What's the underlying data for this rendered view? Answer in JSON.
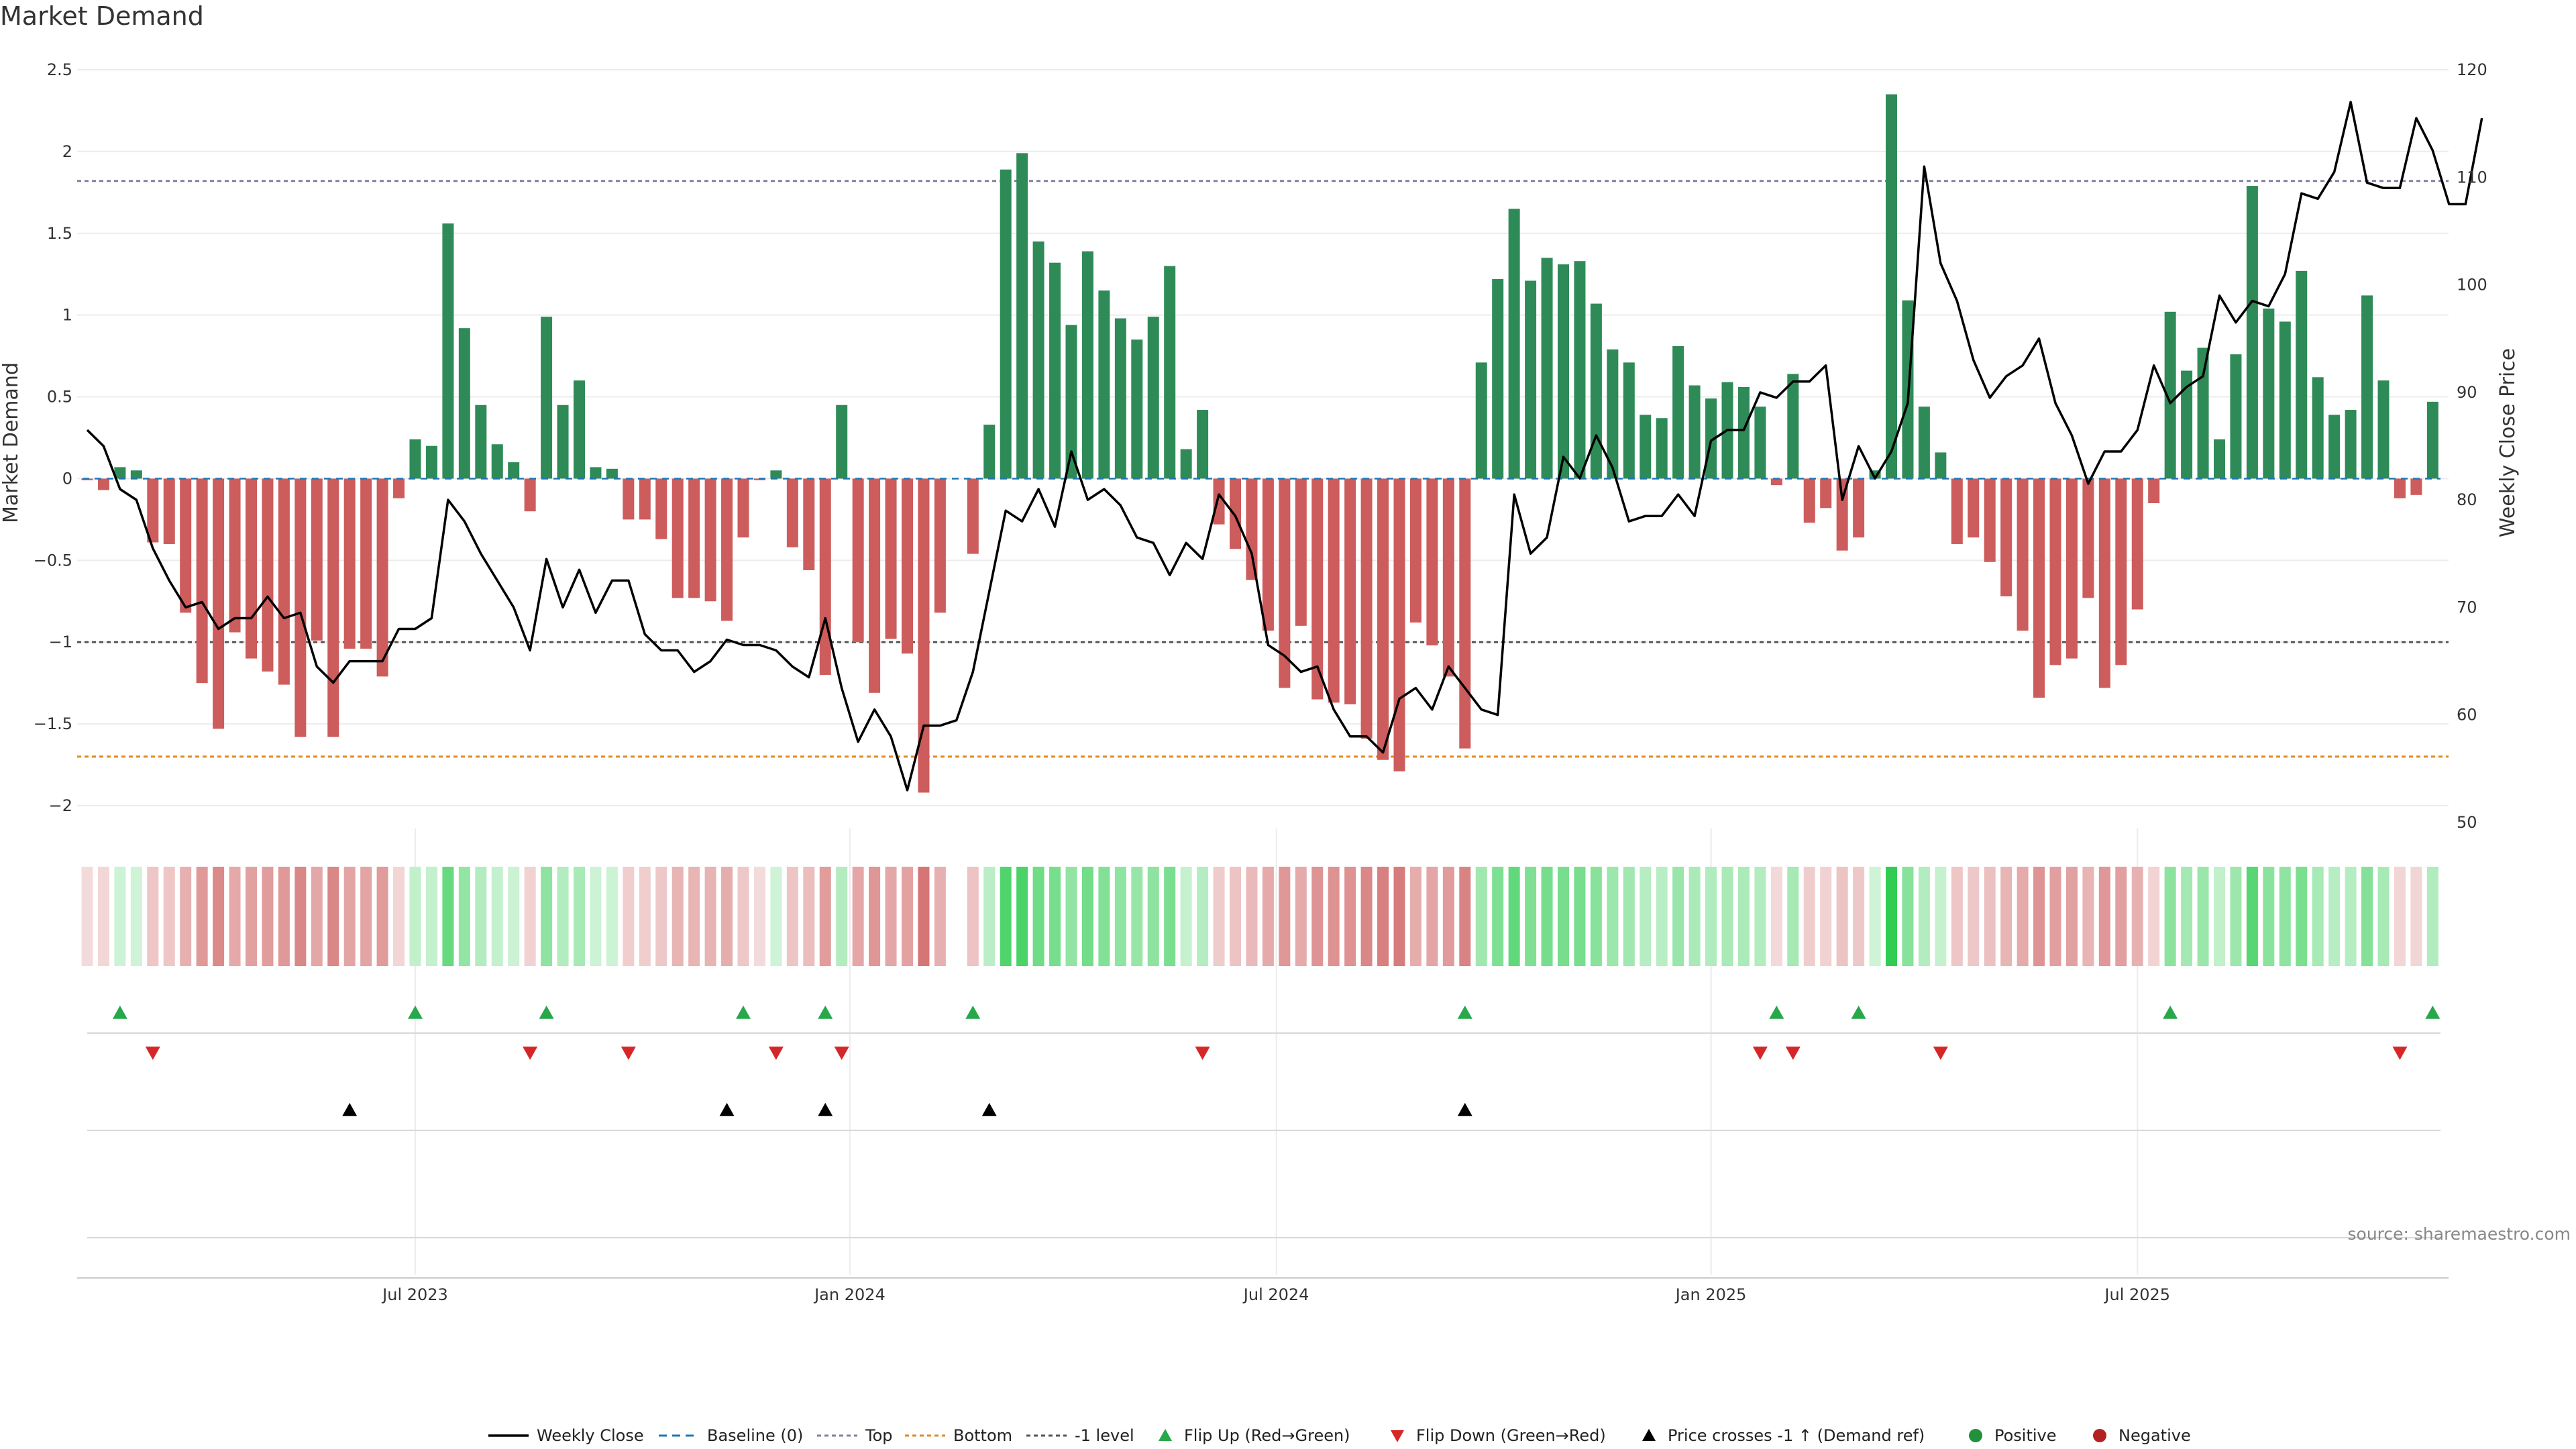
{
  "page": {
    "title": "Market Demand"
  },
  "source": "source: sharemaestro.com",
  "colors": {
    "positive": "#2e8b57",
    "negative": "#cd5c5c",
    "price": "#000000",
    "baseline": "#1f77b4",
    "top": "#8080a0",
    "bottom": "#e08b20",
    "minus1": "#555555",
    "flip_up": "#27a84a",
    "flip_down": "#d62728",
    "cross": "#000000"
  },
  "chart_data": {
    "type": "bar",
    "title": "Market Demand",
    "ylabel": "Market Demand",
    "y2label": "Weekly Close Price",
    "ylim": [
      -2.2,
      2.5
    ],
    "y2lim": [
      48,
      121
    ],
    "yticks": [
      "2.5",
      "2",
      "1.5",
      "1",
      "0.5",
      "0",
      "−0.5",
      "−1",
      "−1.5",
      "−2"
    ],
    "ytick_values": [
      2.5,
      2,
      1.5,
      1,
      0.5,
      0,
      -0.5,
      -1,
      -1.5,
      -2
    ],
    "y2ticks": [
      "120",
      "110",
      "100",
      "90",
      "80",
      "70",
      "60",
      "50"
    ],
    "y2tick_values": [
      120,
      110,
      100,
      90,
      80,
      70,
      60,
      50
    ],
    "xticks": [
      "Jul 2023",
      "Jan 2024",
      "Jul 2024",
      "Jan 2025",
      "Jul 2025"
    ],
    "xtick_weeks": [
      20,
      46.5,
      72.5,
      99,
      125
    ],
    "levels": {
      "top": 1.82,
      "bottom": -1.7,
      "minus1": -1.0,
      "baseline": 0
    },
    "demand": [
      -0.01,
      -0.07,
      0.07,
      0.05,
      -0.39,
      -0.4,
      -0.82,
      -1.25,
      -1.53,
      -0.94,
      -1.1,
      -1.18,
      -1.26,
      -1.58,
      -0.99,
      -1.58,
      -1.04,
      -1.04,
      -1.21,
      -0.12,
      0.24,
      0.2,
      1.56,
      0.92,
      0.45,
      0.21,
      0.1,
      -0.2,
      0.99,
      0.45,
      0.6,
      0.07,
      0.06,
      -0.25,
      -0.25,
      -0.37,
      -0.73,
      -0.73,
      -0.75,
      -0.87,
      -0.36,
      -0.01,
      0.05,
      -0.42,
      -0.56,
      -1.2,
      0.45,
      -1.0,
      -1.31,
      -0.98,
      -1.07,
      -1.92,
      -0.82,
      0.0,
      -0.46,
      0.33,
      1.89,
      1.99,
      1.45,
      1.32,
      0.94,
      1.39,
      1.15,
      0.98,
      0.85,
      0.99,
      1.3,
      0.18,
      0.42,
      -0.28,
      -0.43,
      -0.62,
      -0.93,
      -1.28,
      -0.9,
      -1.35,
      -1.37,
      -1.38,
      -1.59,
      -1.72,
      -1.79,
      -0.88,
      -1.02,
      -1.21,
      -1.65,
      0.71,
      1.22,
      1.65,
      1.21,
      1.35,
      1.31,
      1.33,
      1.07,
      0.79,
      0.71,
      0.39,
      0.37,
      0.81,
      0.57,
      0.49,
      0.59,
      0.56,
      0.44,
      -0.04,
      0.64,
      -0.27,
      -0.18,
      -0.44,
      -0.36,
      0.05,
      2.35,
      1.09,
      0.44,
      0.16,
      -0.4,
      -0.36,
      -0.51,
      -0.72,
      -0.93,
      -1.34,
      -1.14,
      -1.1,
      -0.73,
      -1.28,
      -1.14,
      -0.8,
      -0.15,
      1.02,
      0.66,
      0.8,
      0.24,
      0.76,
      1.79,
      1.04,
      0.96,
      1.27,
      0.62,
      0.39,
      0.42,
      1.12,
      0.6,
      -0.12,
      -0.1,
      0.47
    ],
    "price": [
      86.5,
      85.0,
      81.0,
      80.0,
      75.5,
      72.5,
      70.0,
      70.5,
      68.0,
      69.0,
      69.0,
      71.0,
      69.0,
      69.5,
      64.5,
      63.0,
      65.0,
      65.0,
      65.0,
      68.0,
      68.0,
      69.0,
      80.0,
      78.0,
      75.0,
      72.5,
      70.0,
      66.0,
      74.5,
      70.0,
      73.5,
      69.5,
      72.5,
      72.5,
      67.5,
      66.0,
      66.0,
      64.0,
      65.0,
      67.0,
      66.5,
      66.5,
      66.0,
      64.5,
      63.5,
      69.0,
      62.5,
      57.5,
      60.5,
      58.0,
      53.0,
      59.0,
      59.0,
      59.5,
      64.0,
      71.5,
      79.0,
      78.0,
      81.0,
      77.5,
      84.5,
      80.0,
      81.0,
      79.5,
      76.5,
      76.0,
      73.0,
      76.0,
      74.5,
      80.5,
      78.5,
      75.0,
      66.5,
      65.5,
      64.0,
      64.5,
      60.5,
      58.0,
      58.0,
      56.5,
      61.5,
      62.5,
      60.5,
      64.5,
      62.5,
      60.5,
      60.0,
      80.5,
      75.0,
      76.5,
      84.0,
      82.0,
      86.0,
      83.0,
      78.0,
      78.5,
      78.5,
      80.5,
      78.5,
      85.5,
      86.5,
      86.5,
      90.0,
      89.5,
      91.0,
      91.0,
      92.5,
      80.0,
      85.0,
      82.0,
      84.5,
      89.0,
      111.0,
      102.0,
      98.5,
      93.0,
      89.5,
      91.5,
      92.5,
      95.0,
      89.0,
      86.0,
      81.5,
      84.5,
      84.5,
      86.5,
      92.5,
      89.0,
      90.5,
      91.5,
      99.0,
      96.5,
      98.5,
      98.0,
      101.0,
      108.5,
      108.0,
      110.5,
      117.0,
      109.5,
      109.0,
      109.0,
      115.5,
      112.5,
      107.5,
      107.5,
      115.5
    ],
    "heat_band": "sign-colored tiles, one per week, shade intensity proportional to |demand|; week 53 empty",
    "flip_up_weeks": [
      2,
      20,
      28,
      40,
      45,
      54,
      84,
      103,
      108,
      127,
      143
    ],
    "flip_down_weeks": [
      4,
      27,
      33,
      42,
      46,
      68,
      102,
      104,
      113,
      141
    ],
    "cross_weeks": [
      16,
      39,
      45,
      55,
      84
    ],
    "legend": [
      "Weekly Close",
      "Baseline (0)",
      "Top",
      "Bottom",
      "-1 level",
      "Flip Up (Red→Green)",
      "Flip Down (Green→Red)",
      "Price crosses -1 ↑ (Demand ref)",
      "Positive",
      "Negative"
    ],
    "legend_placement": "bottom-center"
  }
}
